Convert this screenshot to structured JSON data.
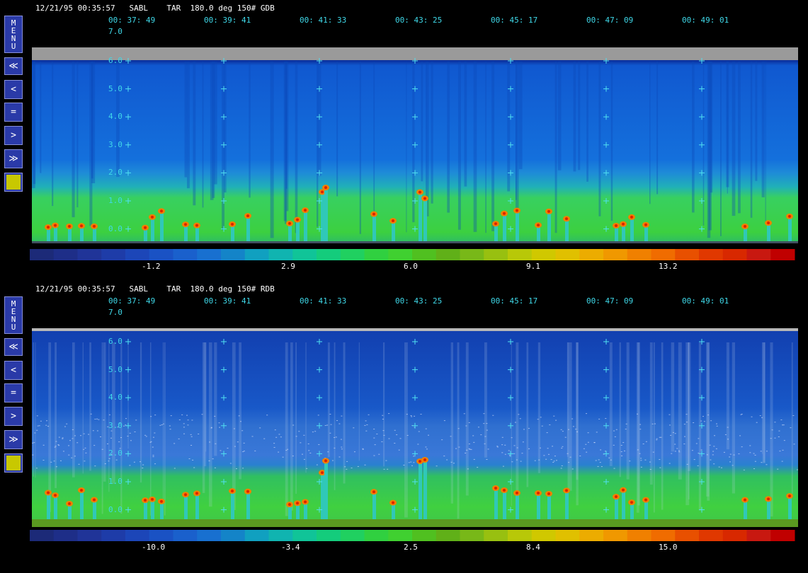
{
  "buttons": {
    "menu": "MENU",
    "rewind": "≪",
    "back": "<",
    "equal": "=",
    "forward": ">",
    "fast_forward": "≫"
  },
  "panels": [
    {
      "header": "12/21/95 00:35:57   SABL    TAR  180.0 deg 150# GDB",
      "times": [
        "00: 37: 49",
        "00: 39: 41",
        "00: 41: 33",
        "00: 43: 25",
        "00: 45: 17",
        "00: 47: 09",
        "00: 49: 01"
      ],
      "top_label": "7.0",
      "height_labels": [
        "6.0",
        "5.0",
        "4.0",
        "3.0",
        "2.0",
        "1.0",
        "0.0"
      ],
      "colorbar_labels": [
        "-1.2",
        "2.9",
        "6.0",
        "9.1",
        "13.2"
      ]
    },
    {
      "header": "12/21/95 00:35:57   SABL    TAR  180.0 deg 150# RDB",
      "times": [
        "00: 37: 49",
        "00: 39: 41",
        "00: 41: 33",
        "00: 43: 25",
        "00: 45: 17",
        "00: 47: 09",
        "00: 49: 01"
      ],
      "top_label": "7.0",
      "height_labels": [
        "6.0",
        "5.0",
        "4.0",
        "3.0",
        "2.0",
        "1.0",
        "0.0"
      ],
      "colorbar_labels": [
        "-10.0",
        "-3.4",
        "2.5",
        "8.4",
        "15.0"
      ]
    }
  ]
}
